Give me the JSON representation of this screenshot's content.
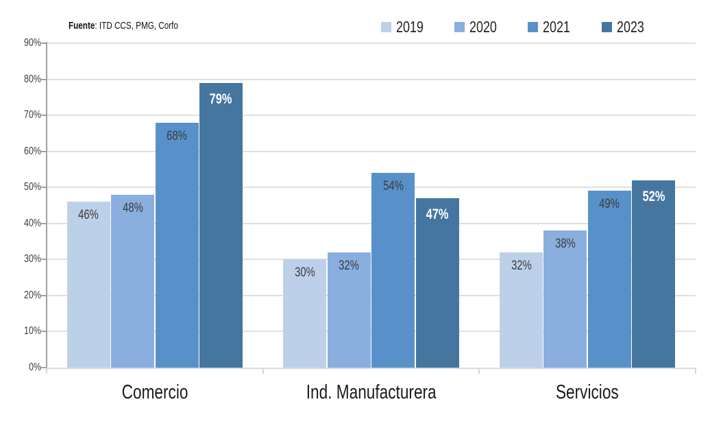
{
  "source_note": {
    "bold": "Fuente",
    "rest": ": ITD CCS, PMG, Corfo"
  },
  "chart_data": {
    "type": "bar",
    "categories": [
      "Comercio",
      "Ind. Manufacturera",
      "Servicios"
    ],
    "series": [
      {
        "name": "2019",
        "color": "#bdd0e9",
        "values": [
          46,
          30,
          32
        ]
      },
      {
        "name": "2020",
        "color": "#8aaede",
        "values": [
          48,
          32,
          38
        ]
      },
      {
        "name": "2021",
        "color": "#5891c9",
        "values": [
          68,
          54,
          49
        ]
      },
      {
        "name": "2023",
        "color": "#45769f",
        "values": [
          79,
          47,
          52
        ]
      }
    ],
    "value_label_format": "{v}%",
    "title": "",
    "xlabel": "",
    "ylabel": "",
    "ylim": [
      0,
      90
    ],
    "ytick_step": 10,
    "ytick_labels": [
      "0%",
      "10%",
      "20%",
      "30%",
      "40%",
      "50%",
      "60%",
      "70%",
      "80%",
      "90%"
    ],
    "grid": true,
    "legend_position": "top",
    "source": "Fuente: ITD CCS, PMG, Corfo"
  },
  "colors": {
    "grid": "#e0e0e0",
    "axis": "#a0a0a0",
    "value_label_dark": "#3b3b3b",
    "value_label_light": "#ffffff"
  }
}
